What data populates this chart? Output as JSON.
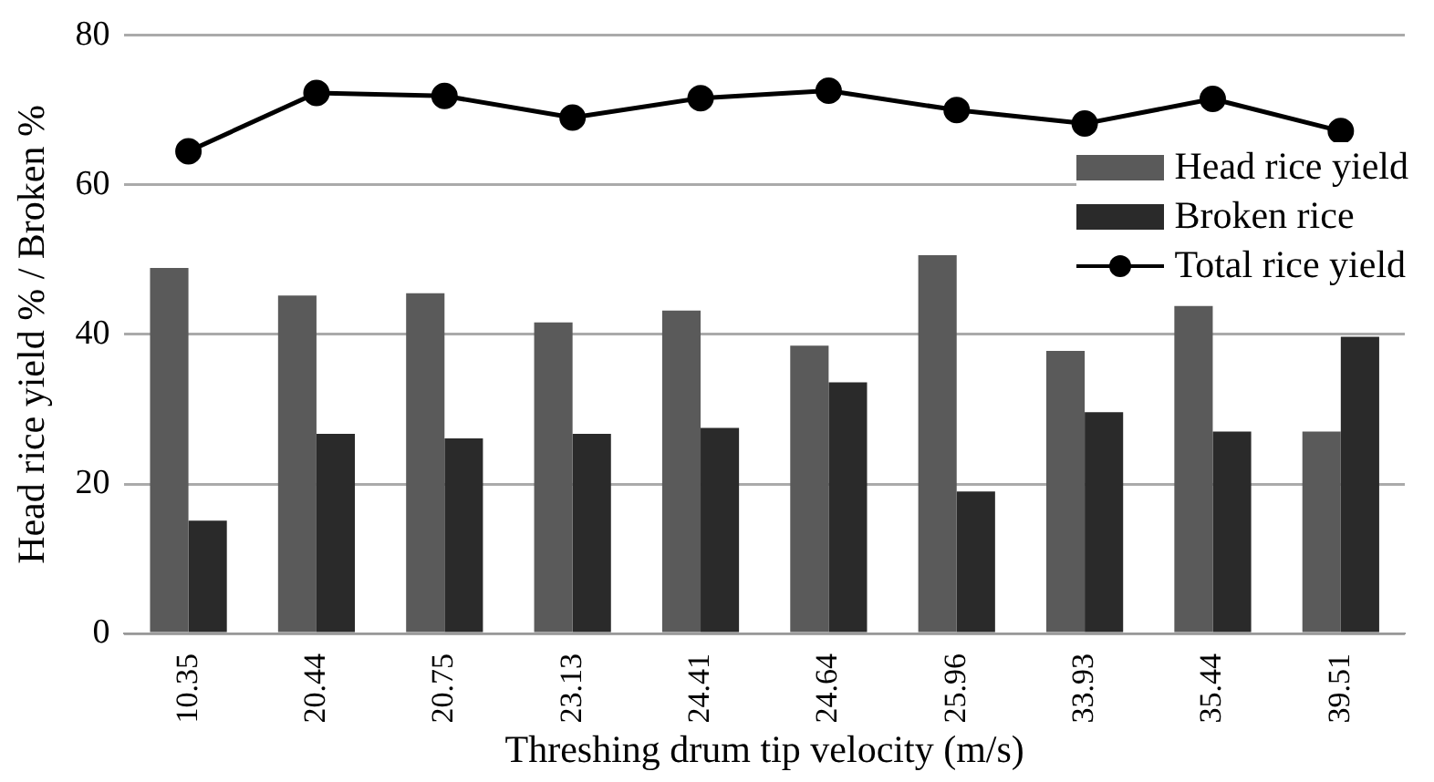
{
  "chart_data": {
    "type": "bar",
    "xlabel": "Threshing drum tip velocity (m/s)",
    "ylabel": "Head rice yield % / Broken %",
    "categories": [
      "10.35",
      "20.44",
      "20.75",
      "23.13",
      "24.41",
      "24.64",
      "25.96",
      "33.93",
      "35.44",
      "39.51"
    ],
    "series": [
      {
        "name": "Head rice yield",
        "color": "#5a5a5a",
        "values": [
          48.9,
          45.2,
          45.5,
          41.6,
          43.2,
          38.5,
          50.6,
          37.8,
          43.8,
          27.0
        ]
      },
      {
        "name": "Broken rice",
        "color": "#2a2a2a",
        "values": [
          15.1,
          26.7,
          26.1,
          26.7,
          27.5,
          33.6,
          19.0,
          29.6,
          27.0,
          39.7
        ]
      },
      {
        "name": "Total rice yield",
        "type": "line",
        "color": "#000000",
        "marker": "circle",
        "values": [
          64.5,
          72.3,
          71.9,
          69.0,
          71.6,
          72.6,
          70.0,
          68.2,
          71.5,
          67.2
        ]
      }
    ],
    "ylim": [
      0,
      80
    ],
    "yticks": [
      0,
      20,
      40,
      60,
      80
    ],
    "grid": "y",
    "legend": "top right"
  }
}
